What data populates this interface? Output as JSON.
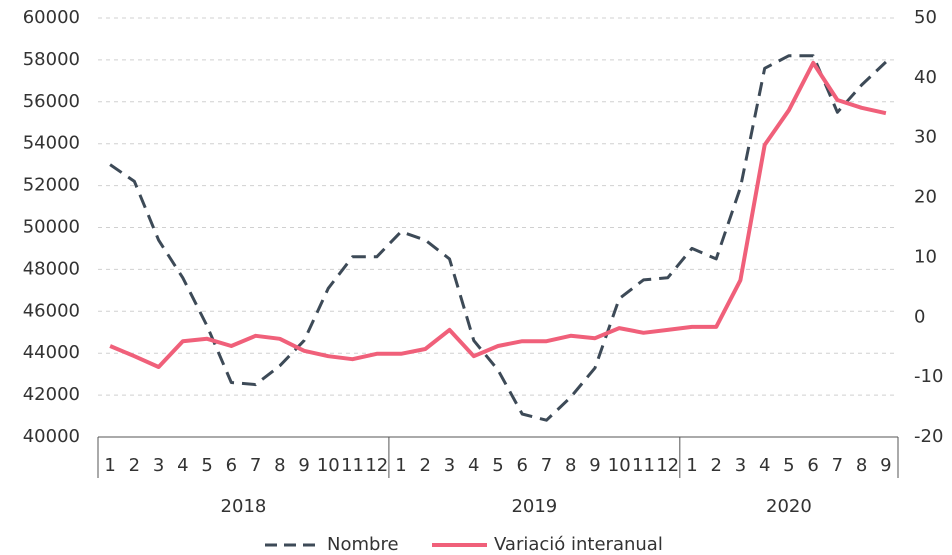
{
  "chart_data": {
    "type": "line",
    "groups": [
      {
        "label": "2018",
        "categories": [
          "1",
          "2",
          "3",
          "4",
          "5",
          "6",
          "7",
          "8",
          "9",
          "10",
          "11",
          "12"
        ]
      },
      {
        "label": "2019",
        "categories": [
          "1",
          "2",
          "3",
          "4",
          "5",
          "6",
          "7",
          "8",
          "9",
          "10",
          "11",
          "12"
        ]
      },
      {
        "label": "2020",
        "categories": [
          "1",
          "2",
          "3",
          "4",
          "5",
          "6",
          "7",
          "8",
          "9"
        ]
      }
    ],
    "series": [
      {
        "name": "Nombre",
        "color": "#3d4a57",
        "line_style": "dashed",
        "values": [
          53000,
          52200,
          49400,
          47600,
          45300,
          42600,
          42500,
          43400,
          44600,
          47100,
          48600,
          48600,
          49800,
          49400,
          48500,
          44600,
          43200,
          41100,
          40800,
          41900,
          43300,
          46600,
          47500,
          47600,
          49000,
          48500,
          51900,
          57600,
          58200,
          58200,
          55500,
          56800,
          57900
        ]
      },
      {
        "name": "Variació interanual",
        "color": "#f0607a",
        "line_style": "solid",
        "axis": "y2",
        "values": [
          -4.8,
          -6.5,
          -8.3,
          -4,
          -3.6,
          -4.8,
          -3.1,
          -3.6,
          -5.6,
          -6.5,
          -7,
          -6.1,
          -6.1,
          -5.3,
          -2.1,
          -6.5,
          -4.8,
          -4,
          -4,
          -3.1,
          -3.5,
          -1.8,
          -2.6,
          -2.1,
          -1.6,
          -1.6,
          6.2,
          28.8,
          34.6,
          42.5,
          36.3,
          35,
          34.1
        ]
      }
    ],
    "ylim": [
      40000,
      60000
    ],
    "yticks": [
      40000,
      42000,
      44000,
      46000,
      48000,
      50000,
      52000,
      54000,
      56000,
      58000,
      60000
    ],
    "y2lim": [
      -20,
      50
    ],
    "y2ticks": [
      -20,
      -10,
      0,
      10,
      20,
      30,
      40,
      50
    ],
    "grid": true,
    "legend": "bottom"
  }
}
